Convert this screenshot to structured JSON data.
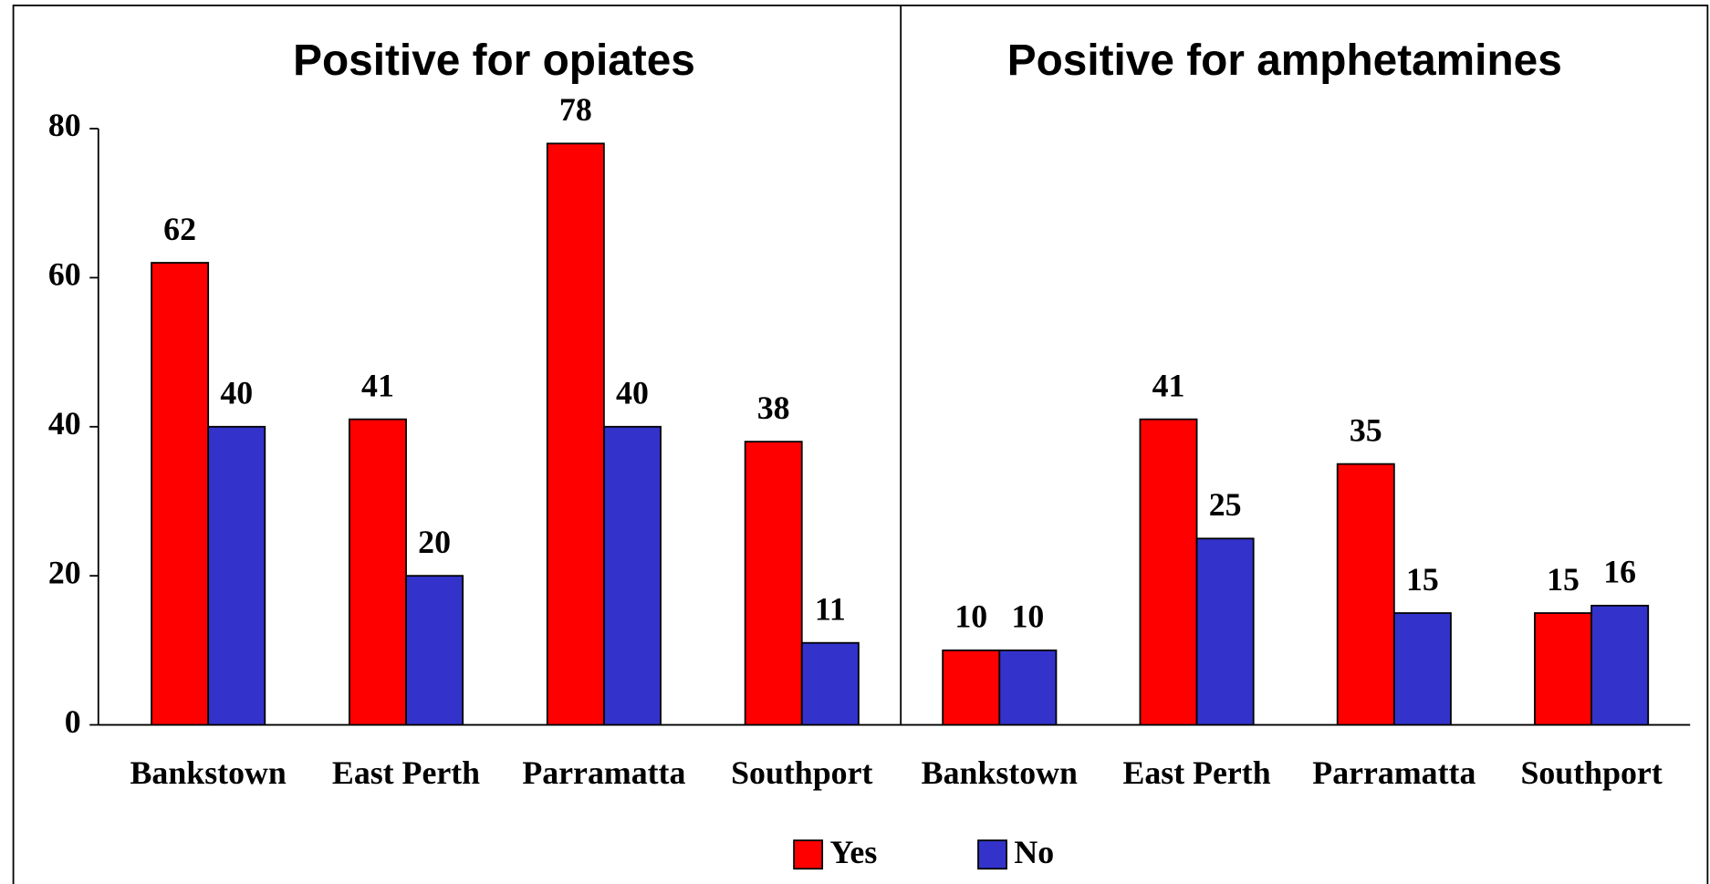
{
  "chart_data": [
    {
      "type": "bar",
      "title": "Positive for opiates",
      "categories": [
        "Bankstown",
        "East Perth",
        "Parramatta",
        "Southport"
      ],
      "series": [
        {
          "name": "Yes",
          "color": "#ff0000",
          "values": [
            62,
            41,
            78,
            38
          ]
        },
        {
          "name": "No",
          "color": "#3333cc",
          "values": [
            40,
            20,
            40,
            11
          ]
        }
      ],
      "ylim": [
        0,
        80
      ],
      "yticks": [
        0,
        20,
        40,
        60,
        80
      ]
    },
    {
      "type": "bar",
      "title": "Positive for amphetamines",
      "categories": [
        "Bankstown",
        "East Perth",
        "Parramatta",
        "Southport"
      ],
      "series": [
        {
          "name": "Yes",
          "color": "#ff0000",
          "values": [
            10,
            41,
            35,
            15
          ]
        },
        {
          "name": "No",
          "color": "#3333cc",
          "values": [
            10,
            25,
            15,
            16
          ]
        }
      ],
      "ylim": [
        0,
        80
      ]
    }
  ]
}
